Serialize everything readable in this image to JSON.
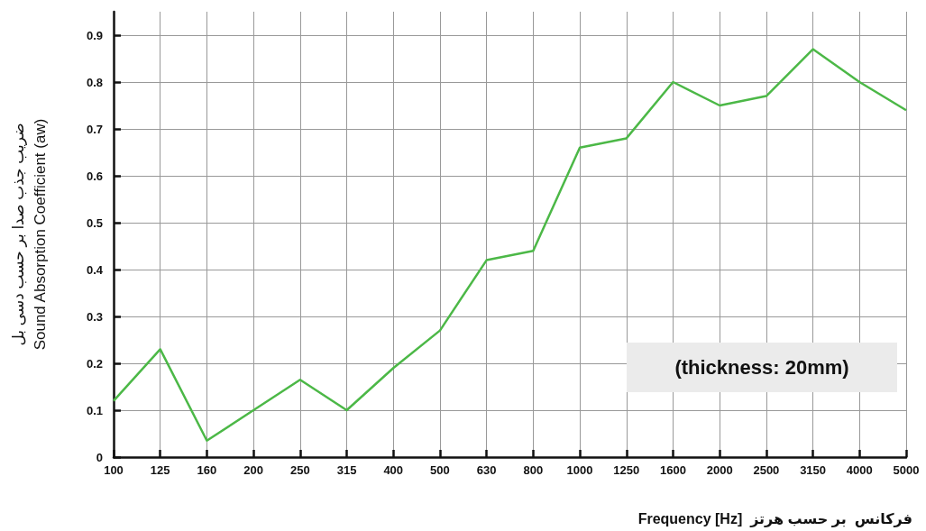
{
  "chart_data": {
    "type": "line",
    "xlabel": "Frequency [Hz]  فرکانس  بر حسب هرتز",
    "ylabel": "ضریب جذب صدا بر حسب دسی بل\nSound Absorption Coefficient (aw)",
    "categories": [
      "100",
      "125",
      "160",
      "200",
      "250",
      "315",
      "400",
      "500",
      "630",
      "800",
      "1000",
      "1250",
      "1600",
      "2000",
      "2500",
      "3150",
      "4000",
      "5000"
    ],
    "series": [
      {
        "color": "#4cb847",
        "values": [
          0.12,
          0.23,
          0.035,
          0.1,
          0.165,
          0.1,
          0.19,
          0.27,
          0.42,
          0.44,
          0.66,
          0.68,
          0.8,
          0.75,
          0.77,
          0.87,
          0.8,
          0.74
        ]
      }
    ],
    "ylim": [
      0,
      0.95
    ],
    "yticks": [
      0,
      0.1,
      0.2,
      0.3,
      0.4,
      0.5,
      0.6,
      0.7,
      0.8,
      0.9
    ],
    "grid": true,
    "marker": "none",
    "line_style": "solid",
    "annotations": [
      "(thickness: 20mm)"
    ]
  }
}
